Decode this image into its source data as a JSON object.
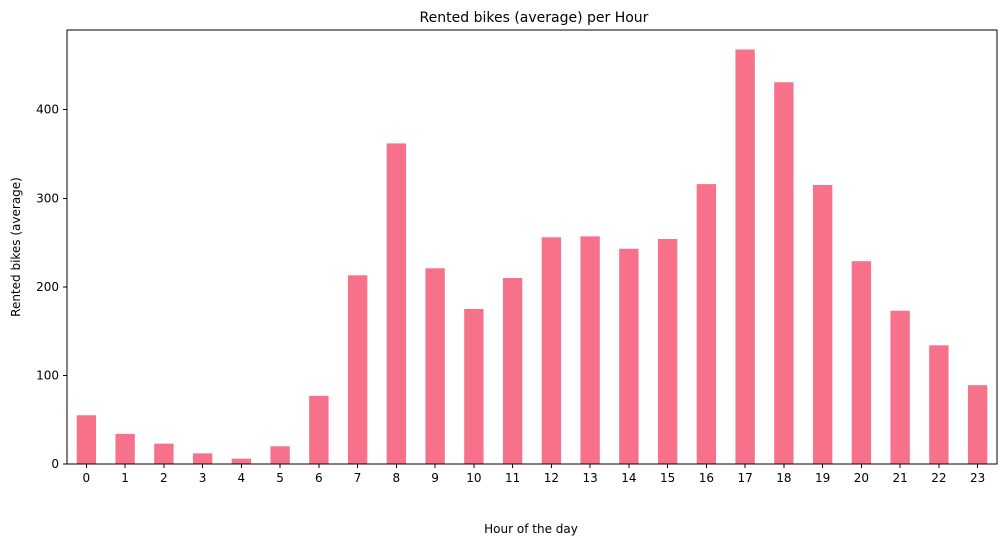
{
  "chart_data": {
    "type": "bar",
    "title": "Rented bikes (average) per Hour",
    "xlabel": "Hour of the day",
    "ylabel": "Rented bikes (average)",
    "categories": [
      "0",
      "1",
      "2",
      "3",
      "4",
      "5",
      "6",
      "7",
      "8",
      "9",
      "10",
      "11",
      "12",
      "13",
      "14",
      "15",
      "16",
      "17",
      "18",
      "19",
      "20",
      "21",
      "22",
      "23"
    ],
    "values": [
      55,
      34,
      23,
      12,
      6,
      20,
      77,
      213,
      362,
      221,
      175,
      210,
      256,
      257,
      243,
      254,
      316,
      468,
      431,
      315,
      229,
      173,
      134,
      89
    ],
    "ylim": [
      0,
      490
    ],
    "yticks": [
      0,
      100,
      200,
      300,
      400
    ],
    "bar_color": "#f7718b",
    "grid": false,
    "legend": "none"
  }
}
